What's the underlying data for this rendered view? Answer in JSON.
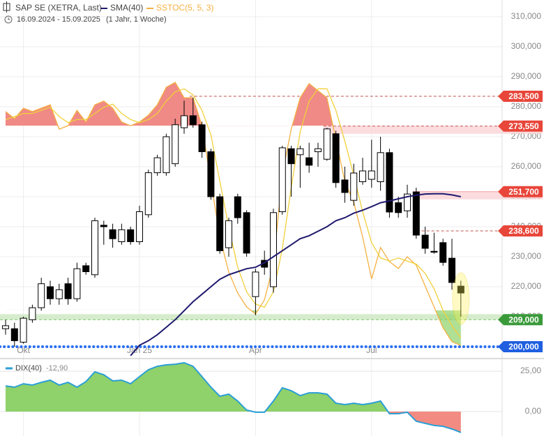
{
  "header": {
    "range": "16.09.2024 - 15.09.2025",
    "period": "(1 Jahr, 1 Woche)"
  },
  "chart_data": [
    {
      "type": "candlestick",
      "ylim": [
        196.28,
        315.58
      ],
      "yticks": [
        {
          "value": 200,
          "label": "200,000"
        },
        {
          "value": 210,
          "label": "210,000"
        },
        {
          "value": 220,
          "label": "220,000"
        },
        {
          "value": 230,
          "label": "230,000"
        },
        {
          "value": 240,
          "label": "240,000"
        },
        {
          "value": 250,
          "label": "250,000"
        },
        {
          "value": 260,
          "label": "260,000"
        },
        {
          "value": 270,
          "label": "270,000"
        },
        {
          "value": 280,
          "label": "280,000"
        },
        {
          "value": 290,
          "label": "290,000"
        },
        {
          "value": 300,
          "label": "300,000"
        },
        {
          "value": 310,
          "label": "310,000"
        }
      ],
      "xticks": [
        {
          "value": 2,
          "label": "Okt"
        },
        {
          "value": 15,
          "label": "Jan 25"
        },
        {
          "value": 28,
          "label": "Apr"
        },
        {
          "value": 41,
          "label": "Jul"
        }
      ],
      "grid": true,
      "series": [
        {
          "name": "SAP SE (XETRA, Last)",
          "color_up": "#ffffff",
          "color_down": "#000000",
          "open": [
            206,
            206,
            201.5,
            209,
            213,
            220,
            216,
            221,
            216,
            227,
            224,
            240.5,
            239,
            235,
            239,
            235,
            244,
            258,
            258,
            261,
            273,
            277,
            274,
            265,
            250,
            233,
            250,
            244.7,
            216.7,
            228.8,
            220,
            245,
            266,
            264,
            263,
            265,
            262.5,
            271,
            255.6,
            248.8,
            255,
            255.8,
            255,
            264.7,
            248,
            245.3,
            251.6,
            237.2,
            231.8,
            234.7,
            229.5,
            220.2
          ],
          "high": [
            209,
            208,
            210,
            214,
            223,
            222,
            221,
            223,
            228,
            228,
            243,
            242,
            241,
            241,
            240,
            247,
            259,
            264,
            271,
            276,
            282,
            283,
            275,
            266,
            251,
            243,
            251,
            245.5,
            226,
            232,
            246,
            267,
            267,
            267,
            268,
            268,
            273,
            272,
            260,
            261,
            263,
            269,
            270,
            266,
            250,
            254,
            253,
            240,
            238,
            236,
            236,
            222
          ],
          "low": [
            204,
            200,
            201,
            208,
            212,
            214,
            214,
            214,
            215,
            224,
            223,
            234,
            233,
            234,
            234,
            234,
            243,
            257,
            257,
            260,
            271,
            273,
            263,
            249,
            231,
            230,
            241,
            230,
            210.5,
            224,
            218,
            244,
            250,
            253,
            258,
            260,
            262,
            253,
            248,
            247,
            254,
            253,
            252,
            243,
            243,
            243,
            236,
            231,
            231,
            227,
            219,
            210
          ],
          "close": [
            207,
            202,
            209.5,
            213,
            221,
            216,
            219,
            216,
            226,
            225,
            242,
            240,
            236,
            239,
            235,
            245,
            258,
            263,
            270,
            274,
            277,
            274,
            265,
            250,
            232,
            242,
            243,
            231.2,
            224.9,
            226.5,
            244.7,
            266.3,
            261,
            266,
            260.5,
            266,
            272.6,
            254.7,
            251.4,
            257.9,
            258.6,
            258.6,
            264.7,
            244.9,
            244.7,
            250.9,
            237.2,
            232.8,
            231.5,
            228.1,
            221.4,
            217.9
          ]
        },
        {
          "name": "SMA(40)",
          "color": "#1f1a6e",
          "values": [
            null,
            null,
            null,
            null,
            null,
            null,
            null,
            null,
            null,
            null,
            null,
            null,
            null,
            null,
            197,
            200.5,
            202,
            204,
            206.5,
            209,
            212,
            215,
            217.5,
            220,
            222.5,
            224,
            225,
            226,
            226.5,
            228,
            230,
            232,
            234,
            236,
            237,
            238.5,
            240,
            242,
            243,
            244.5,
            245.5,
            246.7,
            248,
            248.6,
            249.3,
            250,
            250.5,
            250.9,
            251,
            251,
            250.6,
            250
          ]
        },
        {
          "name": "SSTOC(5, 5, 3)",
          "color": "#f5b041",
          "signal_color": "#f2d03b",
          "axis": "y3",
          "values": [
            84.6,
            82.3,
            85.7,
            84.6,
            85.7,
            86.8,
            78.9,
            80.0,
            85.0,
            81.2,
            86.8,
            88.0,
            85.7,
            81.2,
            80.0,
            81.2,
            83.4,
            86.8,
            92.5,
            94.1,
            89.1,
            89.1,
            80.0,
            61.9,
            43.8,
            32.4,
            25.6,
            21.1,
            18.8,
            23.4,
            34.7,
            64.2,
            78.9,
            89.1,
            93.7,
            91.4,
            89.1,
            75.5,
            61.9,
            55.1,
            43.8,
            30.2,
            40.4,
            35.8,
            33.6,
            37.4,
            34.7,
            27.9,
            21.1,
            14.3,
            9.8,
            8.6
          ],
          "signal": [
            82,
            83,
            84,
            84,
            85,
            86,
            83,
            81,
            82,
            82,
            84,
            86,
            87,
            84,
            82,
            81,
            82,
            84,
            88,
            91,
            92,
            90,
            85,
            77,
            62,
            47,
            34,
            26,
            22,
            21,
            26,
            40,
            60,
            78,
            88,
            92,
            92,
            85,
            75,
            64,
            52,
            42,
            37,
            36,
            37,
            36,
            35,
            32,
            27,
            20,
            15,
            11
          ]
        }
      ],
      "y3lim": [
        0,
        100
      ],
      "sstoc_levels": [
        20,
        80
      ],
      "sstoc_colors": [
        "#8fd16a",
        "#ef8a86"
      ],
      "levels": [
        {
          "value": 283.5,
          "label": "283,500",
          "color": "#e8463a",
          "line": "#c0504d",
          "style": "dashed",
          "from": 21
        },
        {
          "value": 273.55,
          "label": "273,550",
          "color": "#e8463a",
          "line": "#c0504d",
          "style": "dashed",
          "zone": "below",
          "from": 36
        },
        {
          "value": 251.7,
          "label": "251,700",
          "color": "#e8463a",
          "line": "#f2a0a6",
          "style": "solid",
          "zone": "below",
          "from": 46
        },
        {
          "value": 238.6,
          "label": "238,600",
          "color": "#e8463a",
          "line": "#c0504d",
          "style": "dashed",
          "from": 47
        },
        {
          "value": 209,
          "label": "209,000",
          "color": "#3a9a3a",
          "line": "#7cc46a",
          "style": "dashed",
          "zone": "above",
          "from": 0
        },
        {
          "value": 200,
          "label": "200,000",
          "color": "#1f5fe0",
          "line": "#2a6ff0",
          "style": "dotted",
          "from": 0
        }
      ]
    },
    {
      "type": "area",
      "ylim": [
        -15.1,
        31.5
      ],
      "yticks": [
        {
          "value": 25,
          "label": "25,00"
        },
        {
          "value": 0,
          "label": "0,00"
        }
      ],
      "pos_color": "#8fd16a",
      "neg_color": "#f28b82",
      "series": [
        {
          "name": "DIX(40)",
          "color": "#2a9fd6",
          "legend_value": "-12,90",
          "values": [
            15.9,
            15.1,
            17.2,
            16.4,
            18.1,
            19.4,
            16.4,
            18.1,
            15.1,
            18.5,
            24.6,
            22.8,
            19.0,
            19.4,
            17.2,
            21.6,
            25.9,
            28.0,
            28.9,
            29.3,
            30.2,
            28.0,
            21.6,
            15.1,
            9.5,
            10.8,
            6.5,
            0.9,
            -0.4,
            -0.4,
            6.5,
            14.7,
            12.9,
            9.9,
            11.6,
            11.6,
            10.8,
            5.2,
            4.3,
            5.2,
            4.3,
            5.2,
            6.5,
            -1.3,
            -1.3,
            -0.4,
            -6.0,
            -7.3,
            -8.6,
            -9.1,
            -10.8,
            -12.9
          ]
        }
      ]
    }
  ]
}
